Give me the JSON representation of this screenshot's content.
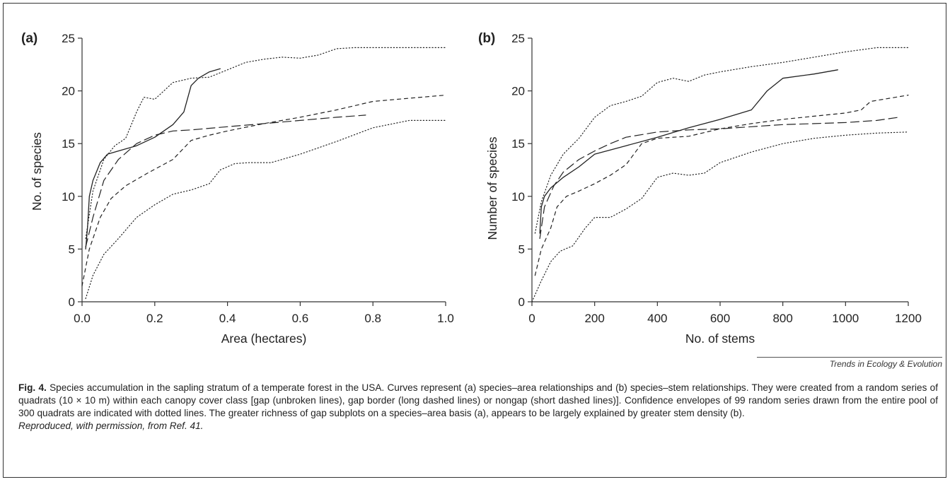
{
  "figure": {
    "fig_label": "Fig. 4.",
    "caption_text": "Species accumulation in the sapling stratum of a temperate forest in the USA. Curves represent (a) species–area relationships and (b) species–stem relationships. They were created from a random series of quadrats (10 × 10 m) within each canopy cover class [gap (unbroken lines), gap border (long dashed lines) or nongap (short dashed lines)]. Confidence envelopes of 99 random series drawn from the entire pool of 300 quadrats are indicated with dotted lines. The greater richness of gap subplots on a species–area basis (a), appears to be largely explained by greater stem density (b).",
    "reproduction": "Reproduced, with permission, from Ref. 41.",
    "source": "Trends in Ecology & Evolution"
  },
  "chart_data": [
    {
      "type": "line",
      "panel_label": "(a)",
      "xlabel": "Area (hectares)",
      "ylabel": "No. of species",
      "xlim": [
        0,
        1.0
      ],
      "ylim": [
        0,
        25
      ],
      "xticks": [
        0,
        0.2,
        0.4,
        0.6,
        0.8,
        1.0
      ],
      "xtick_labels": [
        "0.0",
        "0.2",
        "0.4",
        "0.6",
        "0.8",
        "1.0"
      ],
      "yticks": [
        0,
        5,
        10,
        15,
        20,
        25
      ],
      "ytick_labels": [
        "0",
        "5",
        "10",
        "15",
        "20",
        "25"
      ],
      "grid": false,
      "series": [
        {
          "style": "solid",
          "x": [
            0.01,
            0.015,
            0.02,
            0.03,
            0.05,
            0.07,
            0.1,
            0.15,
            0.2,
            0.25,
            0.28,
            0.3,
            0.32,
            0.35,
            0.38
          ],
          "y": [
            5,
            7,
            10,
            11.5,
            13.2,
            14,
            14.3,
            14.8,
            15.6,
            16.8,
            18,
            20.5,
            21.2,
            21.8,
            22.1
          ]
        },
        {
          "style": "long-dash",
          "x": [
            0.01,
            0.03,
            0.06,
            0.1,
            0.15,
            0.2,
            0.25,
            0.3,
            0.4,
            0.5,
            0.6,
            0.7,
            0.78
          ],
          "y": [
            5.2,
            8,
            11.5,
            13.5,
            15,
            15.8,
            16.2,
            16.3,
            16.6,
            16.9,
            17.2,
            17.5,
            17.7
          ]
        },
        {
          "style": "short-dash",
          "x": [
            0.0,
            0.02,
            0.05,
            0.08,
            0.12,
            0.18,
            0.25,
            0.3,
            0.35,
            0.4,
            0.5,
            0.6,
            0.7,
            0.8,
            0.9,
            1.0
          ],
          "y": [
            1.5,
            5,
            8,
            9.8,
            11,
            12.2,
            13.5,
            15.3,
            15.8,
            16.2,
            16.9,
            17.5,
            18.2,
            19,
            19.3,
            19.6
          ]
        },
        {
          "style": "dotted-upper",
          "x": [
            0.01,
            0.03,
            0.06,
            0.09,
            0.12,
            0.15,
            0.17,
            0.2,
            0.25,
            0.3,
            0.35,
            0.4,
            0.45,
            0.5,
            0.55,
            0.6,
            0.65,
            0.7,
            0.75,
            0.8,
            0.9,
            1.0
          ],
          "y": [
            6,
            10.5,
            13.5,
            14.8,
            15.5,
            18,
            19.4,
            19.2,
            20.8,
            21.2,
            21.3,
            22,
            22.7,
            23,
            23.2,
            23.1,
            23.4,
            24,
            24.1,
            24.1,
            24.1,
            24.1
          ]
        },
        {
          "style": "dotted-lower",
          "x": [
            0.01,
            0.03,
            0.06,
            0.1,
            0.15,
            0.2,
            0.25,
            0.3,
            0.35,
            0.38,
            0.42,
            0.46,
            0.52,
            0.6,
            0.7,
            0.8,
            0.9,
            1.0
          ],
          "y": [
            0.3,
            2.5,
            4.5,
            6,
            8,
            9.2,
            10.2,
            10.6,
            11.2,
            12.5,
            13.1,
            13.2,
            13.2,
            14,
            15.2,
            16.5,
            17.2,
            17.2
          ]
        }
      ]
    },
    {
      "type": "line",
      "panel_label": "(b)",
      "xlabel": "No. of stems",
      "ylabel": "Number of species",
      "xlim": [
        0,
        1200
      ],
      "ylim": [
        0,
        25
      ],
      "xticks": [
        0,
        200,
        400,
        600,
        800,
        1000,
        1200
      ],
      "xtick_labels": [
        "0",
        "200",
        "400",
        "600",
        "800",
        "1000",
        "1200"
      ],
      "yticks": [
        0,
        5,
        10,
        15,
        20,
        25
      ],
      "ytick_labels": [
        "0",
        "5",
        "10",
        "15",
        "20",
        "25"
      ],
      "grid": false,
      "series": [
        {
          "style": "solid",
          "x": [
            25,
            30,
            40,
            60,
            100,
            150,
            200,
            300,
            400,
            500,
            600,
            700,
            750,
            800,
            900,
            975
          ],
          "y": [
            6.5,
            9,
            10,
            10.8,
            11.8,
            12.8,
            14,
            14.8,
            15.6,
            16.5,
            17.3,
            18.2,
            20,
            21.2,
            21.6,
            22
          ]
        },
        {
          "style": "long-dash",
          "x": [
            25,
            40,
            70,
            100,
            150,
            200,
            250,
            300,
            400,
            500,
            600,
            700,
            800,
            900,
            1000,
            1100,
            1170
          ],
          "y": [
            6,
            9,
            11,
            12.3,
            13.5,
            14.3,
            15,
            15.6,
            16.1,
            16.3,
            16.4,
            16.6,
            16.8,
            16.9,
            17,
            17.2,
            17.5
          ]
        },
        {
          "style": "short-dash",
          "x": [
            10,
            30,
            60,
            80,
            110,
            150,
            200,
            250,
            300,
            350,
            400,
            500,
            600,
            700,
            800,
            900,
            1000,
            1050,
            1080,
            1200
          ],
          "y": [
            2.5,
            5,
            7,
            9,
            10,
            10.5,
            11.2,
            12,
            13,
            15,
            15.5,
            15.7,
            16.4,
            16.9,
            17.3,
            17.6,
            17.9,
            18.2,
            19,
            19.6
          ]
        },
        {
          "style": "dotted-upper",
          "x": [
            10,
            30,
            60,
            100,
            150,
            200,
            250,
            300,
            350,
            400,
            450,
            500,
            550,
            600,
            700,
            800,
            900,
            1000,
            1100,
            1200
          ],
          "y": [
            6.5,
            9.5,
            12,
            14,
            15.5,
            17.5,
            18.6,
            19,
            19.5,
            20.8,
            21.2,
            20.9,
            21.5,
            21.8,
            22.3,
            22.7,
            23.2,
            23.7,
            24.1,
            24.1
          ]
        },
        {
          "style": "dotted-lower",
          "x": [
            0,
            30,
            60,
            90,
            130,
            170,
            200,
            250,
            300,
            350,
            400,
            450,
            500,
            550,
            600,
            700,
            800,
            900,
            1000,
            1100,
            1200
          ],
          "y": [
            0,
            2,
            3.8,
            4.8,
            5.3,
            7,
            8,
            8,
            8.8,
            9.8,
            11.8,
            12.2,
            12,
            12.2,
            13.2,
            14.2,
            15,
            15.5,
            15.8,
            16,
            16.1
          ]
        }
      ]
    }
  ]
}
